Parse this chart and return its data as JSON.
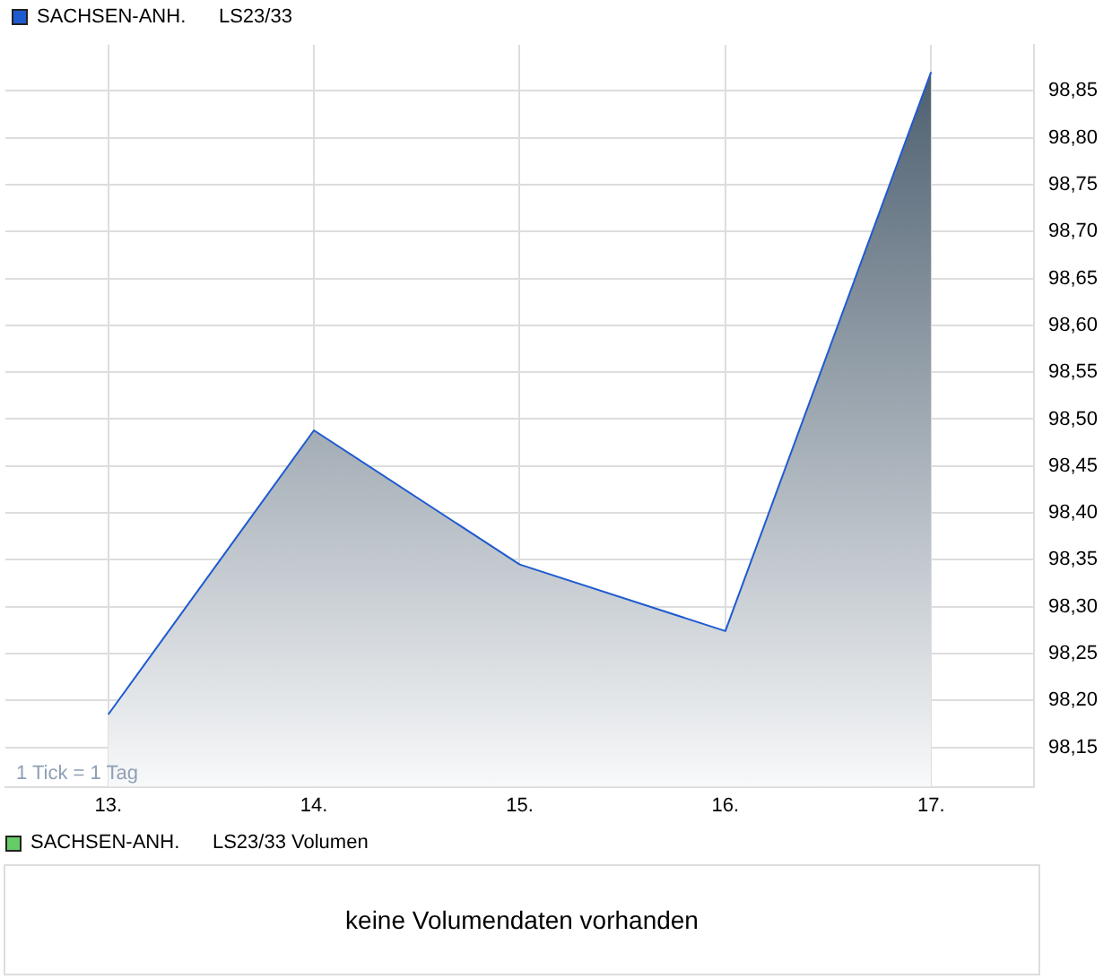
{
  "chart_data": [
    {
      "type": "area",
      "categories": [
        "13.",
        "14.",
        "15.",
        "16.",
        "17."
      ],
      "series": [
        {
          "name": "SACHSEN-ANH.      LS23/33",
          "color": "#1f5bd0",
          "values": [
            98.185,
            98.488,
            98.345,
            98.274,
            98.87
          ]
        }
      ],
      "ylim": [
        98.108,
        98.899
      ],
      "yticks": [
        {
          "value": 98.15,
          "label": "98,15"
        },
        {
          "value": 98.2,
          "label": "98,20"
        },
        {
          "value": 98.25,
          "label": "98,25"
        },
        {
          "value": 98.3,
          "label": "98,30"
        },
        {
          "value": 98.35,
          "label": "98,35"
        },
        {
          "value": 98.4,
          "label": "98,40"
        },
        {
          "value": 98.45,
          "label": "98,45"
        },
        {
          "value": 98.5,
          "label": "98,50"
        },
        {
          "value": 98.55,
          "label": "98,55"
        },
        {
          "value": 98.6,
          "label": "98,60"
        },
        {
          "value": 98.65,
          "label": "98,65"
        },
        {
          "value": 98.7,
          "label": "98,70"
        },
        {
          "value": 98.75,
          "label": "98,75"
        },
        {
          "value": 98.8,
          "label": "98,80"
        },
        {
          "value": 98.85,
          "label": "98,85"
        }
      ],
      "grid": true,
      "legend": "top left",
      "marker": "none",
      "annotations": [
        "1 Tick = 1 Tag"
      ]
    },
    {
      "type": "other",
      "title": "SACHSEN-ANH.      LS23/33 Volumen",
      "annotations": [
        "keine Volumendaten vorhanden"
      ]
    }
  ]
}
